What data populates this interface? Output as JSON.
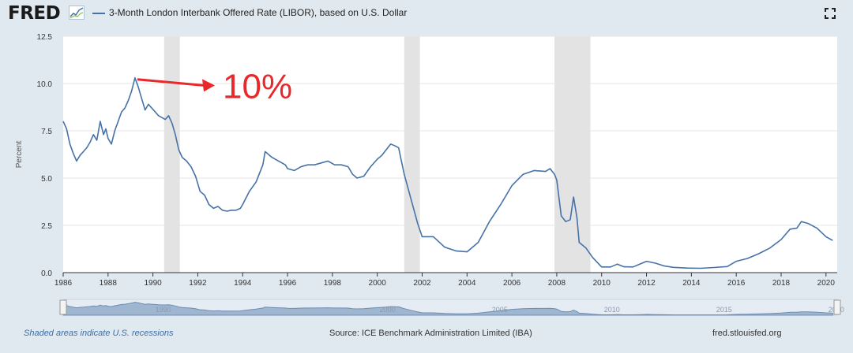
{
  "header": {
    "logo_text": "FRED",
    "logo_icon": "fred-graph-icon",
    "series_title": "3-Month London Interbank Offered Rate (LIBOR), based on U.S. Dollar",
    "fullscreen_icon": "fullscreen-icon"
  },
  "annotation": {
    "text": "10%",
    "color": "#e8282b"
  },
  "footer": {
    "recession_note": "Shaded areas indicate U.S. recessions",
    "source": "Source: ICE Benchmark Administration Limited (IBA)",
    "site": "fred.stlouisfed.org"
  },
  "colors": {
    "series": "#4572a7",
    "recession": "#e3e3e3",
    "grid": "#e6e6e6",
    "background": "#e1e9f0",
    "plot": "#ffffff"
  },
  "chart_data": {
    "type": "line",
    "title": "3-Month London Interbank Offered Rate (LIBOR), based on U.S. Dollar",
    "ylabel": "Percent",
    "xlabel": "",
    "xlim": [
      1986,
      2020.5
    ],
    "ylim": [
      0,
      12.5
    ],
    "yticks": [
      0.0,
      2.5,
      5.0,
      7.5,
      10.0,
      12.5
    ],
    "ytick_labels": [
      "0.0",
      "2.5",
      "5.0",
      "7.5",
      "10.0",
      "12.5"
    ],
    "xticks": [
      1986,
      1988,
      1990,
      1992,
      1994,
      1996,
      1998,
      2000,
      2002,
      2004,
      2006,
      2008,
      2010,
      2012,
      2014,
      2016,
      2018,
      2020
    ],
    "xtick_labels": [
      "1986",
      "1988",
      "1990",
      "1992",
      "1994",
      "1996",
      "1998",
      "2000",
      "2002",
      "2004",
      "2006",
      "2008",
      "2010",
      "2012",
      "2014",
      "2016",
      "2018",
      "2020"
    ],
    "recessions": [
      [
        1990.5,
        1991.2
      ],
      [
        2001.2,
        2001.9
      ],
      [
        2007.9,
        2009.5
      ]
    ],
    "grid": true,
    "legend": "top-left",
    "navigator_labels": [
      "1990",
      "2000",
      "2005",
      "2010",
      "2015",
      "2020"
    ],
    "series": [
      {
        "name": "3-Month London Interbank Offered Rate (LIBOR), based on U.S. Dollar",
        "x": [
          1986.0,
          1986.15,
          1986.3,
          1986.45,
          1986.6,
          1986.75,
          1986.9,
          1987.05,
          1987.2,
          1987.35,
          1987.5,
          1987.65,
          1987.8,
          1987.9,
          1988.0,
          1988.15,
          1988.3,
          1988.45,
          1988.6,
          1988.75,
          1988.9,
          1989.05,
          1989.2,
          1989.35,
          1989.5,
          1989.65,
          1989.8,
          1989.95,
          1990.1,
          1990.25,
          1990.4,
          1990.55,
          1990.7,
          1990.85,
          1991.0,
          1991.15,
          1991.3,
          1991.5,
          1991.7,
          1991.9,
          1992.1,
          1992.3,
          1992.5,
          1992.7,
          1992.9,
          1993.1,
          1993.3,
          1993.5,
          1993.7,
          1993.9,
          1994.0,
          1994.3,
          1994.6,
          1994.9,
          1995.0,
          1995.3,
          1995.6,
          1995.9,
          1996.0,
          1996.3,
          1996.6,
          1996.9,
          1997.2,
          1997.5,
          1997.8,
          1998.1,
          1998.4,
          1998.7,
          1998.9,
          1999.1,
          1999.4,
          1999.7,
          2000.0,
          2000.2,
          2000.4,
          2000.6,
          2000.8,
          2000.95,
          2001.2,
          2001.5,
          2001.8,
          2002.0,
          2002.5,
          2003.0,
          2003.5,
          2004.0,
          2004.5,
          2005.0,
          2005.5,
          2006.0,
          2006.5,
          2007.0,
          2007.5,
          2007.7,
          2007.9,
          2008.0,
          2008.2,
          2008.4,
          2008.6,
          2008.75,
          2008.9,
          2009.0,
          2009.3,
          2009.6,
          2010.0,
          2010.4,
          2010.7,
          2011.0,
          2011.4,
          2011.8,
          2012.0,
          2012.4,
          2012.8,
          2013.2,
          2013.8,
          2014.4,
          2015.0,
          2015.6,
          2016.0,
          2016.5,
          2017.0,
          2017.5,
          2018.0,
          2018.4,
          2018.7,
          2018.9,
          2019.2,
          2019.6,
          2020.0,
          2020.3
        ],
        "values": [
          8.0,
          7.6,
          6.8,
          6.3,
          5.9,
          6.2,
          6.4,
          6.6,
          6.9,
          7.3,
          7.0,
          8.0,
          7.3,
          7.6,
          7.1,
          6.8,
          7.5,
          8.0,
          8.5,
          8.7,
          9.1,
          9.6,
          10.3,
          9.8,
          9.2,
          8.6,
          8.9,
          8.7,
          8.5,
          8.3,
          8.2,
          8.1,
          8.3,
          7.9,
          7.3,
          6.5,
          6.1,
          5.9,
          5.6,
          5.1,
          4.3,
          4.1,
          3.6,
          3.4,
          3.5,
          3.3,
          3.25,
          3.3,
          3.3,
          3.4,
          3.6,
          4.3,
          4.8,
          5.7,
          6.4,
          6.1,
          5.9,
          5.7,
          5.5,
          5.4,
          5.6,
          5.7,
          5.7,
          5.8,
          5.9,
          5.7,
          5.7,
          5.6,
          5.2,
          5.0,
          5.1,
          5.6,
          6.0,
          6.2,
          6.5,
          6.8,
          6.7,
          6.6,
          5.2,
          3.9,
          2.6,
          1.9,
          1.9,
          1.35,
          1.15,
          1.1,
          1.6,
          2.7,
          3.6,
          4.6,
          5.2,
          5.4,
          5.35,
          5.5,
          5.2,
          4.9,
          3.0,
          2.7,
          2.8,
          4.0,
          2.9,
          1.6,
          1.3,
          0.8,
          0.3,
          0.3,
          0.45,
          0.31,
          0.3,
          0.5,
          0.6,
          0.5,
          0.35,
          0.28,
          0.24,
          0.23,
          0.27,
          0.32,
          0.6,
          0.75,
          1.0,
          1.3,
          1.75,
          2.3,
          2.35,
          2.7,
          2.6,
          2.35,
          1.9,
          1.7
        ]
      }
    ]
  }
}
